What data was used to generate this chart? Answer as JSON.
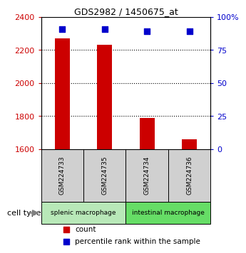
{
  "title": "GDS2982 / 1450675_at",
  "samples": [
    "GSM224733",
    "GSM224735",
    "GSM224734",
    "GSM224736"
  ],
  "counts": [
    2270,
    2230,
    1790,
    1660
  ],
  "percentile_ranks": [
    91,
    91,
    89,
    89
  ],
  "ylim_left": [
    1600,
    2400
  ],
  "ylim_right": [
    0,
    100
  ],
  "yticks_left": [
    1600,
    1800,
    2000,
    2200,
    2400
  ],
  "yticks_right": [
    0,
    25,
    50,
    75,
    100
  ],
  "ytick_labels_right": [
    "0",
    "25",
    "50",
    "75",
    "100%"
  ],
  "bar_color": "#cc0000",
  "dot_color": "#0000cc",
  "bar_width": 0.35,
  "groups": [
    {
      "label": "splenic macrophage",
      "indices": [
        0,
        1
      ],
      "color": "#b8e8b8"
    },
    {
      "label": "intestinal macrophage",
      "indices": [
        2,
        3
      ],
      "color": "#66dd66"
    }
  ],
  "cell_type_label": "cell type",
  "legend_count_label": "count",
  "legend_pct_label": "percentile rank within the sample",
  "sample_box_color": "#d0d0d0",
  "background_color": "#ffffff"
}
